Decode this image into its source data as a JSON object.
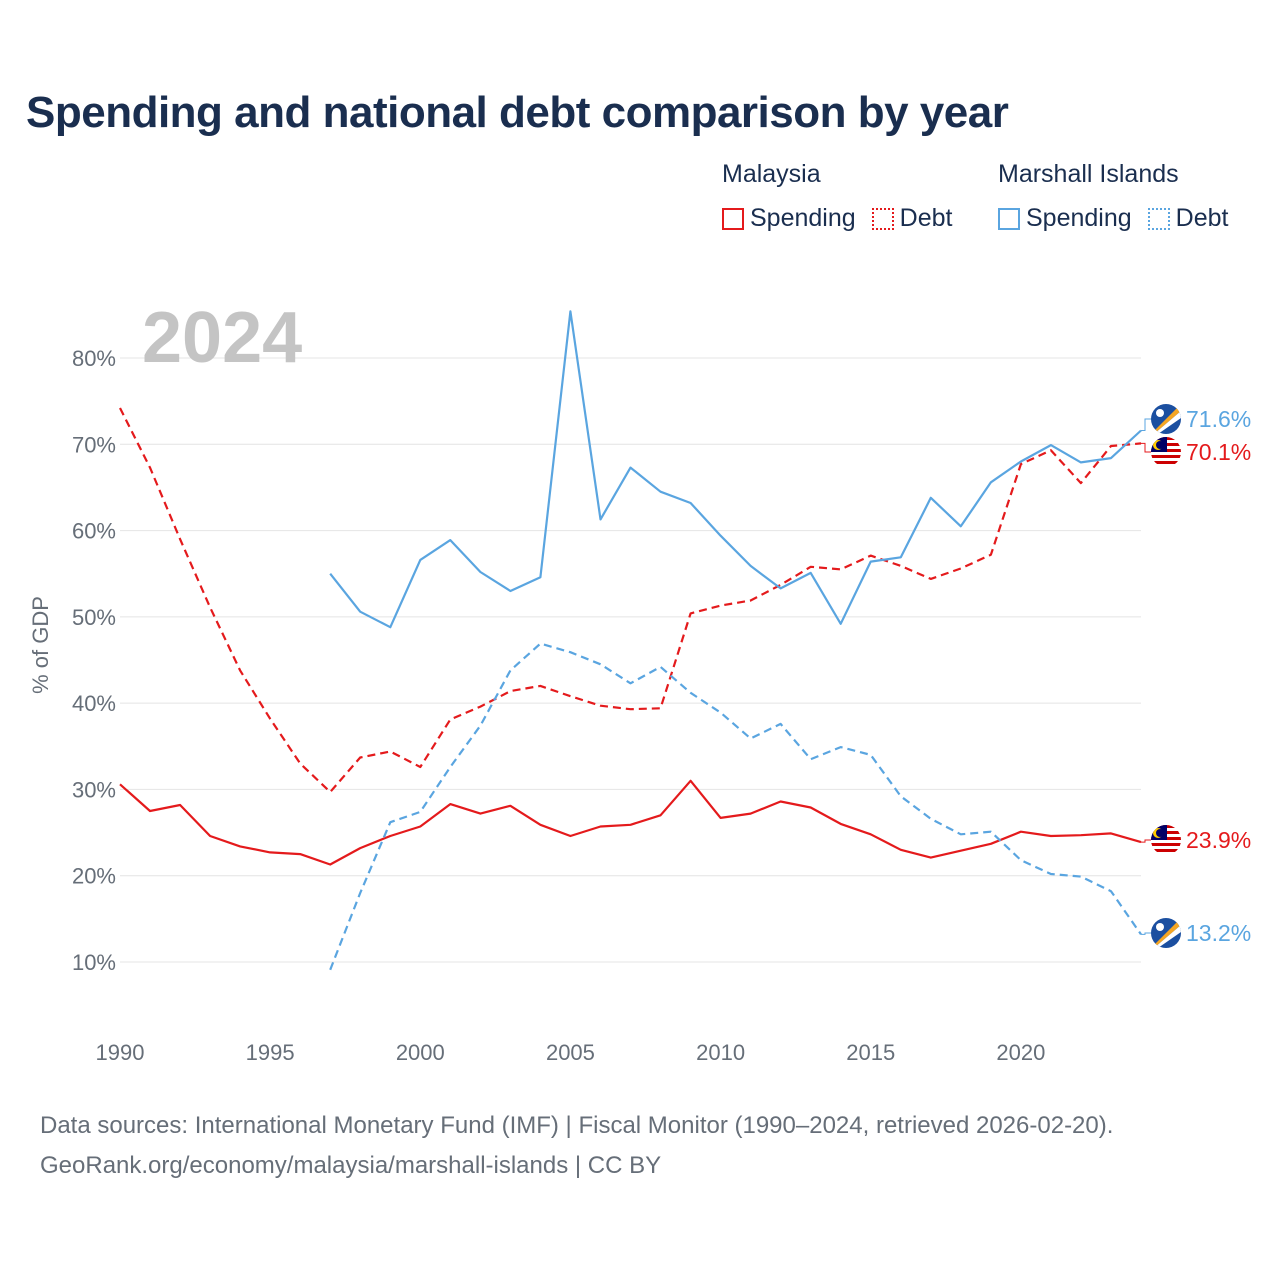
{
  "title": "Spending and national debt comparison by year",
  "legend": {
    "groups": [
      {
        "country": "Malaysia",
        "spending_label": "Spending",
        "debt_label": "Debt",
        "color": "#e41a1c"
      },
      {
        "country": "Marshall Islands",
        "spending_label": "Spending",
        "debt_label": "Debt",
        "color": "#5aa5e0"
      }
    ]
  },
  "footer": {
    "line1": "Data sources: International Monetary Fund (IMF) | Fiscal Monitor (1990–2024, retrieved 2026-02-20).",
    "line2": "GeoRank.org/economy/malaysia/marshall-islands | CC BY"
  },
  "chart_data": {
    "type": "line",
    "year_label": "2024",
    "ylabel": "% of GDP",
    "xlim": [
      1990,
      2024
    ],
    "ylim": [
      5,
      85
    ],
    "x_ticks": [
      1990,
      1995,
      2000,
      2005,
      2010,
      2015,
      2020
    ],
    "x_tick_labels": [
      "1990",
      "1995",
      "2000",
      "2005",
      "2010",
      "2015",
      "2020"
    ],
    "y_ticks": [
      10,
      20,
      30,
      40,
      50,
      60,
      70,
      80
    ],
    "y_tick_labels": [
      "10%",
      "20%",
      "30%",
      "40%",
      "50%",
      "60%",
      "70%",
      "80%"
    ],
    "series": [
      {
        "name": "Malaysia Debt",
        "country": "Malaysia",
        "metric": "Debt",
        "color": "#e41a1c",
        "dashed": true,
        "start_year": 1990,
        "values": [
          74.2,
          67.3,
          59.0,
          51.1,
          43.8,
          38.2,
          33.0,
          29.7,
          33.7,
          34.4,
          32.6,
          38.1,
          39.6,
          41.4,
          42.0,
          40.8,
          39.7,
          39.3,
          39.4,
          50.4,
          51.3,
          51.9,
          53.7,
          55.8,
          55.5,
          57.1,
          55.9,
          54.4,
          55.6,
          57.2,
          67.7,
          69.3,
          65.5,
          69.8,
          70.1
        ],
        "end_label": "70.1%"
      },
      {
        "name": "Malaysia Spending",
        "country": "Malaysia",
        "metric": "Spending",
        "color": "#e41a1c",
        "dashed": false,
        "start_year": 1990,
        "values": [
          30.6,
          27.5,
          28.2,
          24.6,
          23.4,
          22.7,
          22.5,
          21.3,
          23.2,
          24.6,
          25.7,
          28.3,
          27.2,
          28.1,
          25.9,
          24.6,
          25.7,
          25.9,
          27.0,
          31.0,
          26.7,
          27.2,
          28.6,
          27.9,
          26.0,
          24.8,
          23.0,
          22.1,
          22.9,
          23.7,
          25.1,
          24.6,
          24.7,
          24.9,
          23.9
        ],
        "end_label": "23.9%"
      },
      {
        "name": "Marshall Islands Spending",
        "country": "Marshall Islands",
        "metric": "Spending",
        "color": "#5aa5e0",
        "dashed": false,
        "start_year": 1997,
        "values": [
          55.0,
          50.6,
          48.8,
          56.6,
          58.9,
          55.2,
          53.0,
          54.6,
          85.4,
          61.3,
          67.3,
          64.5,
          63.2,
          59.4,
          55.9,
          53.3,
          55.1,
          49.2,
          56.4,
          56.9,
          63.8,
          60.5,
          65.6,
          68.0,
          69.9,
          67.9,
          68.4,
          71.6
        ],
        "end_label": "71.6%"
      },
      {
        "name": "Marshall Islands Debt",
        "country": "Marshall Islands",
        "metric": "Debt",
        "color": "#5aa5e0",
        "dashed": true,
        "start_year": 1997,
        "values": [
          9.1,
          18.0,
          26.2,
          27.4,
          32.6,
          37.4,
          43.8,
          46.9,
          45.9,
          44.5,
          42.3,
          44.2,
          41.2,
          38.9,
          35.9,
          37.6,
          33.5,
          34.9,
          34.0,
          29.2,
          26.6,
          24.8,
          25.1,
          21.8,
          20.2,
          19.9,
          18.2,
          13.2
        ],
        "end_label": "13.2%"
      }
    ]
  }
}
